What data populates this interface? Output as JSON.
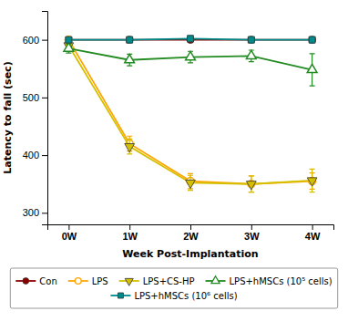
{
  "chart_data": {
    "type": "line",
    "xlabel": "Week Post-Implantation",
    "ylabel": "Latency to fall (sec)",
    "categories": [
      "0W",
      "1W",
      "2W",
      "3W",
      "4W"
    ],
    "series": [
      {
        "name": "Con",
        "color": "#8B0000",
        "marker": "circle",
        "values": [
          600,
          600,
          600,
          600,
          600
        ],
        "yerr": [
          4,
          4,
          4,
          4,
          4
        ]
      },
      {
        "name": "LPS",
        "color": "#FFA500",
        "marker": "circle-open",
        "values": [
          600,
          420,
          355,
          350,
          355
        ],
        "yerr": [
          4,
          13,
          13,
          14,
          14
        ]
      },
      {
        "name": "LPS+CS-HP",
        "color": "#D4C000",
        "marker": "triangle-down",
        "values": [
          590,
          415,
          352,
          350,
          356
        ],
        "yerr": [
          4,
          13,
          13,
          14,
          20
        ]
      },
      {
        "name": "LPS+hMSCs (10⁵ cells)",
        "color": "#228B22",
        "marker": "triangle-up-open",
        "values": [
          585,
          565,
          570,
          572,
          548
        ],
        "yerr": [
          8,
          10,
          10,
          10,
          28
        ]
      },
      {
        "name": "LPS+hMSCs (10⁶ cells)",
        "color": "#008B8B",
        "marker": "square",
        "values": [
          600,
          600,
          602,
          600,
          600
        ],
        "yerr": [
          4,
          5,
          5,
          5,
          5
        ]
      }
    ],
    "ylim": [
      280,
      650
    ],
    "yticks": [
      300,
      400,
      500,
      600
    ],
    "grid": false,
    "legend": "bottom"
  }
}
